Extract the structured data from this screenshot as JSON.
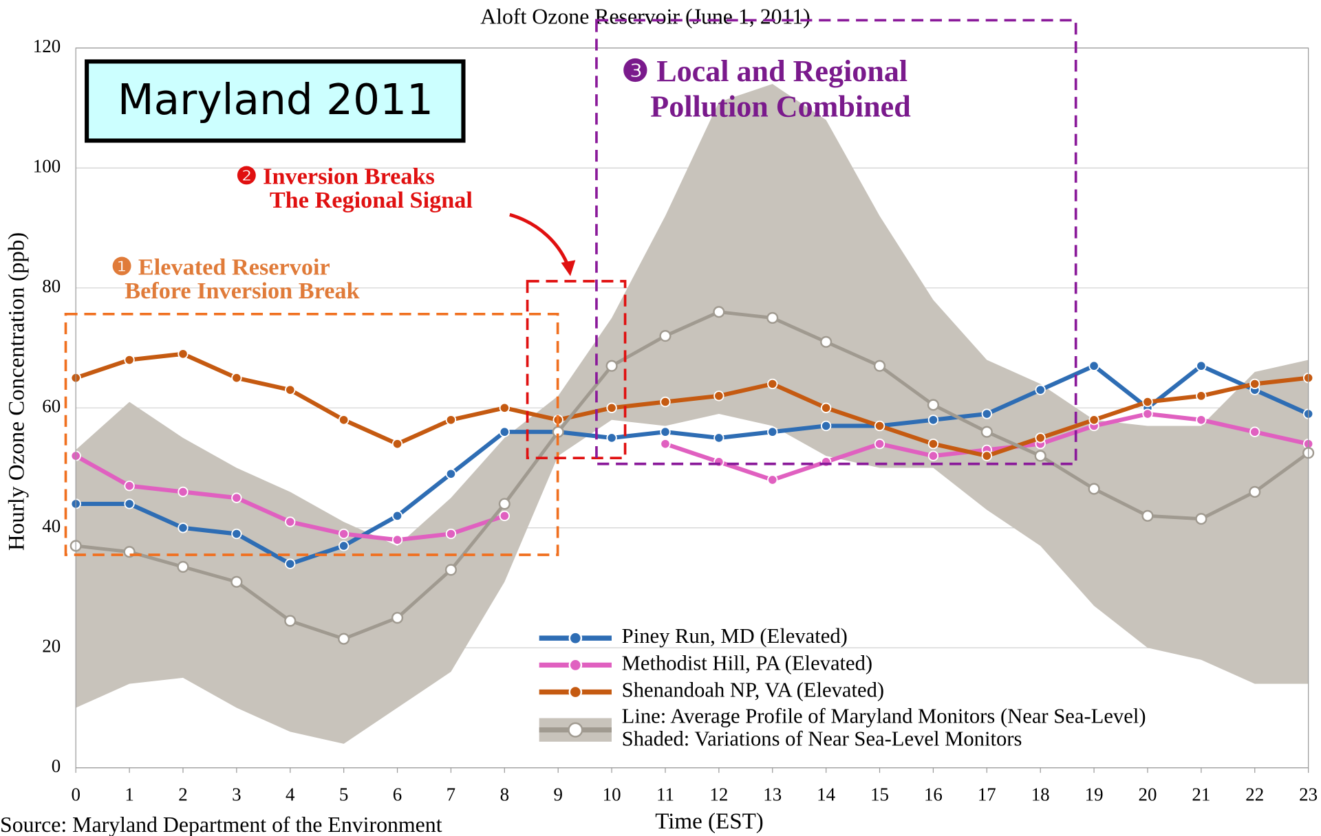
{
  "chart_data": {
    "type": "line",
    "title": "Aloft Ozone Reservoir (June 1, 2011)",
    "badge": "Maryland 2011",
    "y_label": "Hourly Ozone Concentration (ppb)",
    "x_label": "Time (EST)",
    "source": "Source: Maryland Department of the Environment",
    "annotations": [
      {
        "lines": [
          "❶ Elevated Reservoir",
          "Before Inversion Break"
        ],
        "color": "#e07b39"
      },
      {
        "lines": [
          "❷ Inversion Breaks",
          "The Regional Signal"
        ],
        "color": "#e01010"
      },
      {
        "lines": [
          "❸ Local and Regional",
          "Pollution Combined"
        ],
        "color": "#7a1a8c"
      }
    ],
    "x": [
      0,
      1,
      2,
      3,
      4,
      5,
      6,
      7,
      8,
      9,
      10,
      11,
      12,
      13,
      14,
      15,
      16,
      17,
      18,
      19,
      20,
      21,
      22,
      23
    ],
    "xlim": [
      0,
      23
    ],
    "xticks": [
      0,
      1,
      2,
      3,
      4,
      5,
      6,
      7,
      8,
      9,
      10,
      11,
      12,
      13,
      14,
      15,
      16,
      17,
      18,
      19,
      20,
      21,
      22,
      23
    ],
    "ylim": [
      0,
      120
    ],
    "yticks": [
      0,
      20,
      40,
      60,
      80,
      100,
      120
    ],
    "grid": true,
    "band": {
      "name": "Shaded: Variations of Near Sea-Level Monitors",
      "color": "#c8c3bb",
      "upper": [
        53,
        61,
        55,
        50,
        46,
        41,
        37,
        45,
        55,
        62,
        75,
        92,
        111,
        114,
        108,
        92,
        78,
        68,
        64,
        58,
        57,
        57,
        66,
        68
      ],
      "lower": [
        10,
        14,
        15,
        10,
        6,
        4,
        10,
        16,
        31,
        52,
        58,
        57,
        59,
        57,
        52,
        50,
        50,
        43,
        37,
        27,
        20,
        18,
        14,
        14
      ]
    },
    "series": [
      {
        "name": "Piney Run, MD (Elevated)",
        "color": "#2e6db4",
        "values": [
          44,
          44,
          40,
          39,
          34,
          37,
          42,
          49,
          56,
          56,
          55,
          56,
          55,
          56,
          57,
          57,
          58,
          59,
          63,
          67,
          60,
          67,
          63,
          59
        ]
      },
      {
        "name": "Methodist Hill, PA (Elevated)",
        "color": "#e060c0",
        "values": [
          52,
          47,
          46,
          45,
          41,
          39,
          38,
          39,
          42,
          null,
          null,
          54,
          51,
          48,
          51,
          54,
          52,
          53,
          54,
          57,
          59,
          58,
          56,
          54
        ]
      },
      {
        "name": "Shenandoah NP, VA (Elevated)",
        "color": "#c55a11",
        "values": [
          65,
          68,
          69,
          65,
          63,
          58,
          54,
          58,
          60,
          58,
          60,
          61,
          62,
          64,
          60,
          57,
          54,
          52,
          55,
          58,
          61,
          62,
          64,
          65
        ]
      },
      {
        "name": "Line: Average Profile of Maryland Monitors (Near Sea-Level)",
        "color": "#a09a90",
        "values": [
          37,
          36,
          33.5,
          31,
          24.5,
          21.5,
          25,
          33,
          44,
          56,
          67,
          72,
          76,
          75,
          71,
          67,
          60.5,
          56,
          52,
          46.5,
          42,
          41.5,
          46,
          52.5
        ]
      }
    ]
  }
}
